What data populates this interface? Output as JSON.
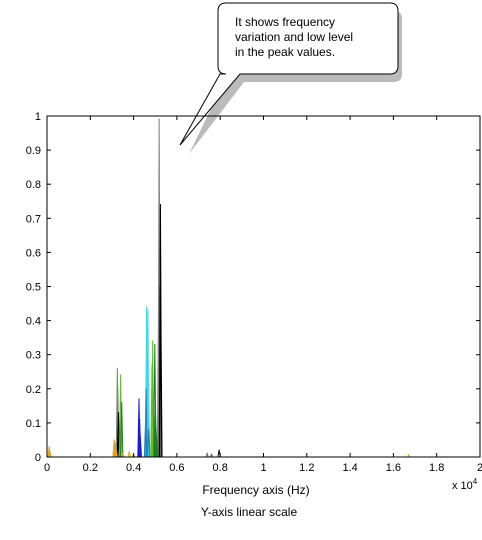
{
  "chart_data": {
    "type": "line",
    "title": "",
    "xlabel": "Frequency axis (Hz)",
    "ylabel": "",
    "caption": "Y-axis linear scale",
    "x_multiplier": "x 10",
    "x_multiplier_exp": "4",
    "xlim": [
      0,
      20000
    ],
    "ylim": [
      0,
      1
    ],
    "x_ticks": [
      0,
      2000,
      4000,
      6000,
      8000,
      10000,
      12000,
      14000,
      16000,
      18000,
      20000
    ],
    "x_tick_labels": [
      "0",
      "0.2",
      "0.4",
      "0.6",
      "0.8",
      "1",
      "1.2",
      "1.4",
      "1.6",
      "1.8",
      "2"
    ],
    "y_ticks": [
      0,
      0.1,
      0.2,
      0.3,
      0.4,
      0.5,
      0.6,
      0.7,
      0.8,
      0.9,
      1
    ],
    "y_tick_labels": [
      "0",
      "0.1",
      "0.2",
      "0.3",
      "0.4",
      "0.5",
      "0.6",
      "0.7",
      "0.8",
      "0.9",
      "1"
    ],
    "grid": false,
    "annotation": {
      "lines": [
        "It shows frequency",
        "variation and low level",
        "in the peak values."
      ]
    },
    "series": [
      {
        "color": "#808080",
        "x": [
          3250,
          3270,
          3290,
          5150,
          5180,
          5200
        ],
        "y": [
          0.26,
          0.2,
          0.12,
          0.42,
          0.99,
          0.5
        ]
      },
      {
        "color": "#000000",
        "x": [
          3300,
          3330,
          5240,
          5260,
          7950
        ],
        "y": [
          0.13,
          0.07,
          0.74,
          0.42,
          0.02
        ]
      },
      {
        "color": "#40d8e8",
        "x": [
          4600,
          4630,
          4660,
          4690
        ],
        "y": [
          0.44,
          0.3,
          0.43,
          0.22
        ]
      },
      {
        "color": "#2080c0",
        "x": [
          4550,
          4580,
          4700
        ],
        "y": [
          0.1,
          0.2,
          0.08
        ]
      },
      {
        "color": "#1a1ad8",
        "x": [
          4250,
          4280,
          4310
        ],
        "y": [
          0.17,
          0.11,
          0.06
        ]
      },
      {
        "color": "#60c020",
        "x": [
          3400,
          3430,
          4850,
          4880,
          4920,
          4950
        ],
        "y": [
          0.24,
          0.12,
          0.27,
          0.34,
          0.18,
          0.12
        ]
      },
      {
        "color": "#208020",
        "x": [
          3450,
          4980,
          5010,
          5040,
          5080
        ],
        "y": [
          0.16,
          0.33,
          0.14,
          0.08,
          0.05
        ]
      },
      {
        "color": "#e0a020",
        "x": [
          3100,
          3130,
          3160,
          3200,
          3500,
          3800,
          4000
        ],
        "y": [
          0.05,
          0.03,
          0.04,
          0.02,
          0.01,
          0.015,
          0.008
        ]
      },
      {
        "color": "#6060a0",
        "x": [
          7400,
          7600
        ],
        "y": [
          0.01,
          0.008
        ]
      },
      {
        "color": "#e0a020",
        "x": [
          100,
          140,
          16700
        ],
        "y": [
          0.03,
          0.015,
          0.006
        ]
      }
    ]
  }
}
